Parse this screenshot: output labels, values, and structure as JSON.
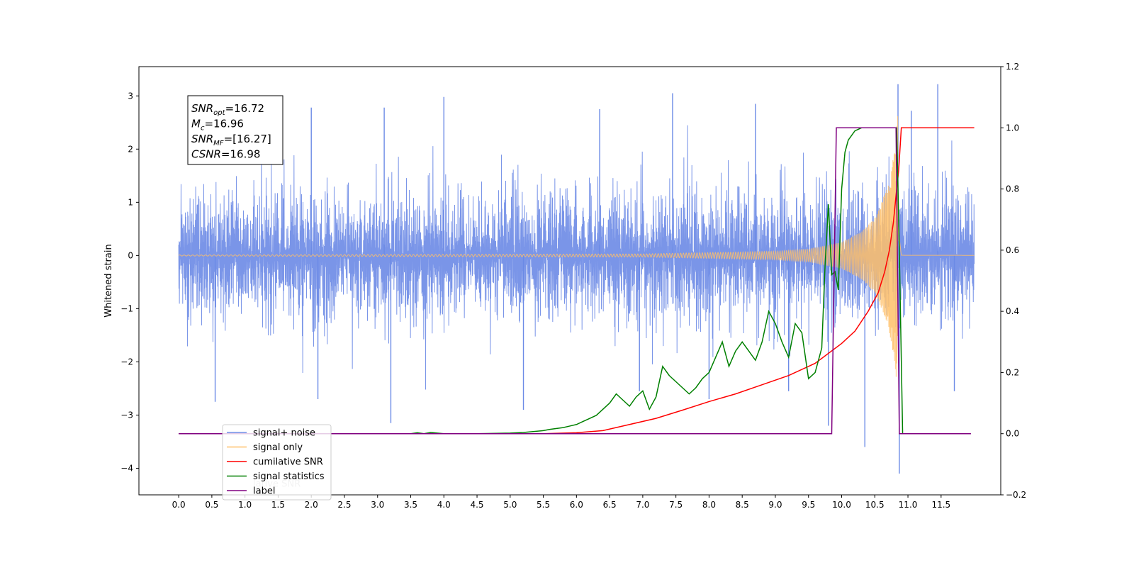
{
  "chart_data": {
    "type": "line",
    "ylabel": "Whitened strain",
    "xlim": [
      -0.6,
      12.4
    ],
    "ylim": [
      -4.5,
      3.55
    ],
    "y2lim": [
      -0.2,
      1.2
    ],
    "x_ticks": [
      0.0,
      0.5,
      1.0,
      1.5,
      2.0,
      2.5,
      3.0,
      3.5,
      4.0,
      4.5,
      5.0,
      5.5,
      6.0,
      6.5,
      7.0,
      7.5,
      8.0,
      8.5,
      9.0,
      9.5,
      10.0,
      10.5,
      11.0,
      11.5
    ],
    "x_tick_labels": [
      "0.0",
      "0.5",
      "1.0",
      "1.5",
      "2.0",
      "2.5",
      "3.0",
      "3.5",
      "4.0",
      "4.5",
      "5.0",
      "5.5",
      "6.0",
      "6.5",
      "7.0",
      "7.5",
      "8.0",
      "8.5",
      "9.0",
      "9.5",
      "10.0",
      "10.5",
      "11.0",
      "11.5"
    ],
    "y_ticks": [
      3,
      2,
      1,
      0,
      -1,
      -2,
      -3,
      -4
    ],
    "y_tick_labels": [
      "3",
      "2",
      "1",
      "0",
      "−1",
      "−2",
      "−3",
      "−4"
    ],
    "y2_ticks": [
      1.2,
      1.0,
      0.8,
      0.6,
      0.4,
      0.2,
      0.0,
      -0.2
    ],
    "y2_tick_labels": [
      "1.2",
      "1.0",
      "0.8",
      "0.6",
      "0.4",
      "0.2",
      "0.0",
      "−0.2"
    ],
    "annotation_lines": [
      {
        "base": "SNR",
        "sub": "opt",
        "rest": "=16.72"
      },
      {
        "base": "M",
        "sub": "c",
        "rest": "=16.96"
      },
      {
        "base": "SNR",
        "sub": "MF",
        "rest": "=[16.27]"
      },
      {
        "base": "CSNR",
        "sub": "",
        "rest": "=16.98"
      }
    ],
    "legend_position": "lower-left",
    "legend": [
      {
        "label": "signal+ noise",
        "color": "#6b8ae6"
      },
      {
        "label": "signal only",
        "color": "#ffc069"
      },
      {
        "label": "cumilative SNR",
        "color": "#ff0000"
      },
      {
        "label": "signal statistics",
        "color": "#008000"
      },
      {
        "label": "label",
        "color": "#800080"
      }
    ],
    "legend_overlap_text": "lative SNR",
    "series": [
      {
        "name": "signal+ noise",
        "axis": "left",
        "color": "#6b8ae6",
        "render": "noise-band",
        "x_range": [
          0.0,
          12.0
        ],
        "typical_amplitude": 1.5,
        "spikes": [
          {
            "x": 3.2,
            "y": -3.15
          },
          {
            "x": 5.2,
            "y": -2.9
          },
          {
            "x": 10.35,
            "y": -3.6
          },
          {
            "x": 10.85,
            "y": 3.22
          },
          {
            "x": 10.87,
            "y": -4.1
          },
          {
            "x": 11.45,
            "y": 3.22
          },
          {
            "x": 7.45,
            "y": 3.05
          },
          {
            "x": 4.0,
            "y": 2.98
          },
          {
            "x": 0.55,
            "y": -2.75
          },
          {
            "x": 9.8,
            "y": -3.2
          },
          {
            "x": 2.0,
            "y": 2.78
          },
          {
            "x": 3.1,
            "y": 2.78
          },
          {
            "x": 6.35,
            "y": 2.75
          },
          {
            "x": 8.7,
            "y": 2.85
          },
          {
            "x": 11.05,
            "y": 2.72
          },
          {
            "x": 2.1,
            "y": -2.7
          },
          {
            "x": 11.7,
            "y": -2.55
          },
          {
            "x": 8.0,
            "y": -2.7
          },
          {
            "x": 9.2,
            "y": -2.55
          },
          {
            "x": 6.95,
            "y": -2.55
          }
        ]
      },
      {
        "name": "signal only",
        "axis": "left",
        "color": "#ffc069",
        "render": "chirp",
        "x_range": [
          0.0,
          12.0
        ],
        "merger_x": 10.85,
        "peak_amplitude": 2.7,
        "envelope": [
          [
            0.0,
            0.01
          ],
          [
            7.0,
            0.03
          ],
          [
            9.0,
            0.08
          ],
          [
            9.5,
            0.12
          ],
          [
            10.0,
            0.25
          ],
          [
            10.3,
            0.45
          ],
          [
            10.5,
            0.7
          ],
          [
            10.7,
            1.3
          ],
          [
            10.8,
            2.0
          ],
          [
            10.85,
            2.7
          ],
          [
            10.9,
            0.02
          ],
          [
            12.0,
            0.01
          ]
        ]
      },
      {
        "name": "cumilative SNR",
        "axis": "right",
        "color": "#ff0000",
        "x": [
          0.0,
          5.5,
          6.0,
          6.4,
          6.8,
          7.2,
          7.6,
          8.0,
          8.4,
          8.8,
          9.2,
          9.6,
          10.0,
          10.2,
          10.4,
          10.55,
          10.65,
          10.72,
          10.78,
          10.83,
          10.86,
          10.9,
          12.0
        ],
        "values": [
          0.0,
          0.0,
          0.003,
          0.01,
          0.03,
          0.05,
          0.077,
          0.105,
          0.13,
          0.16,
          0.19,
          0.23,
          0.295,
          0.335,
          0.4,
          0.46,
          0.53,
          0.6,
          0.69,
          0.8,
          0.86,
          1.0,
          1.0
        ]
      },
      {
        "name": "signal statistics",
        "axis": "right",
        "color": "#008000",
        "x": [
          0.0,
          3.5,
          3.6,
          3.7,
          3.8,
          3.9,
          4.0,
          4.5,
          5.0,
          5.2,
          5.5,
          5.6,
          5.8,
          5.9,
          6.0,
          6.1,
          6.2,
          6.3,
          6.4,
          6.5,
          6.6,
          6.7,
          6.8,
          6.9,
          7.0,
          7.1,
          7.2,
          7.3,
          7.4,
          7.5,
          7.6,
          7.7,
          7.8,
          7.9,
          8.0,
          8.1,
          8.2,
          8.3,
          8.4,
          8.5,
          8.6,
          8.7,
          8.8,
          8.9,
          9.0,
          9.1,
          9.2,
          9.3,
          9.4,
          9.5,
          9.6,
          9.7,
          9.75,
          9.8,
          9.85,
          9.9,
          9.95,
          10.0,
          10.05,
          10.1,
          10.2,
          10.3,
          10.5,
          10.83,
          10.87,
          10.92
        ],
        "values": [
          0.0,
          0.0,
          0.003,
          0.0,
          0.004,
          0.002,
          0.0,
          0.0,
          0.002,
          0.004,
          0.01,
          0.014,
          0.02,
          0.025,
          0.03,
          0.04,
          0.05,
          0.06,
          0.08,
          0.1,
          0.13,
          0.11,
          0.09,
          0.12,
          0.14,
          0.08,
          0.12,
          0.22,
          0.19,
          0.17,
          0.15,
          0.13,
          0.15,
          0.18,
          0.2,
          0.25,
          0.3,
          0.22,
          0.27,
          0.3,
          0.27,
          0.24,
          0.3,
          0.4,
          0.36,
          0.3,
          0.25,
          0.36,
          0.33,
          0.18,
          0.2,
          0.28,
          0.55,
          0.75,
          0.52,
          0.53,
          0.47,
          0.8,
          0.92,
          0.96,
          0.99,
          1.0,
          1.0,
          1.0,
          0.6,
          0.0
        ]
      },
      {
        "name": "label",
        "axis": "right",
        "color": "#800080",
        "x": [
          0.0,
          9.85,
          9.92,
          10.82,
          10.87,
          11.95
        ],
        "values": [
          0.0,
          0.0,
          1.0,
          1.0,
          0.0,
          0.0
        ]
      }
    ]
  }
}
